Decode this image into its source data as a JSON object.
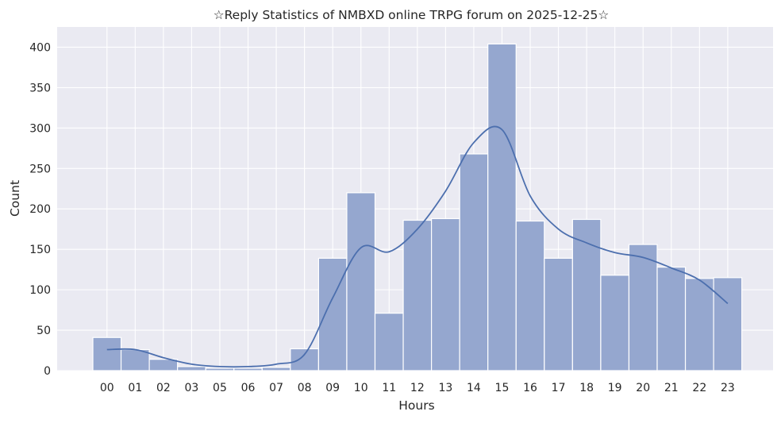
{
  "chart_data": {
    "type": "bar",
    "title": "☆Reply Statistics of NMBXD online TRPG forum on 2025-12-25☆",
    "xlabel": "Hours",
    "ylabel": "Count",
    "categories": [
      "00",
      "01",
      "02",
      "03",
      "05",
      "06",
      "07",
      "08",
      "09",
      "10",
      "11",
      "12",
      "13",
      "14",
      "15",
      "16",
      "17",
      "18",
      "19",
      "20",
      "21",
      "22",
      "23"
    ],
    "values": [
      41,
      26,
      14,
      5,
      3,
      3,
      4,
      27,
      139,
      220,
      71,
      186,
      188,
      268,
      404,
      185,
      139,
      187,
      118,
      156,
      128,
      114,
      115
    ],
    "kde": [
      26,
      26,
      16,
      8,
      5,
      5,
      8,
      20,
      90,
      152,
      147,
      175,
      222,
      282,
      298,
      216,
      175,
      158,
      146,
      140,
      127,
      112,
      83
    ],
    "ylim": [
      0,
      425
    ],
    "yticks": [
      0,
      50,
      100,
      150,
      200,
      250,
      300,
      350,
      400
    ],
    "grid": true,
    "legend": "none",
    "colors": {
      "bar_fill": "#95a7cf",
      "bar_edge": "#ffffff",
      "kde_line": "#4c6fae",
      "plot_bg": "#eaeaf2",
      "grid": "#ffffff"
    }
  }
}
